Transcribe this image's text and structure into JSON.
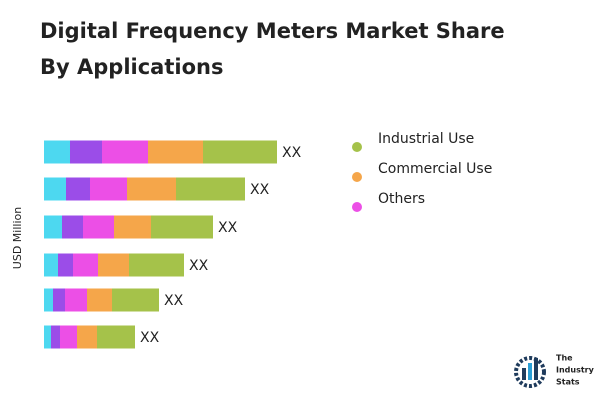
{
  "chart_data": {
    "type": "stacked-barh",
    "title_lines": [
      "Digital Frequency Meters Market Share",
      "By Applications"
    ],
    "y_label": "USD Million",
    "categories": [
      null,
      null,
      null,
      null,
      null,
      null
    ],
    "series": [
      {
        "color": "#4dd8f0",
        "values": [
          26,
          22,
          18,
          14,
          9,
          7
        ]
      },
      {
        "color": "#9b4de8",
        "values": [
          32,
          24,
          21,
          15,
          12,
          9
        ]
      },
      {
        "name": "Others",
        "color": "#ec4fe6",
        "values": [
          46,
          37,
          31,
          25,
          22,
          17
        ]
      },
      {
        "name": "Commercial Use",
        "color": "#f5a64a",
        "values": [
          55,
          49,
          37,
          31,
          25,
          20
        ]
      },
      {
        "name": "Industrial Use",
        "color": "#a5c24a",
        "values": [
          74,
          69,
          62,
          55,
          47,
          38
        ]
      }
    ],
    "value_labels": [
      "XX",
      "XX",
      "XX",
      "XX",
      "XX",
      "XX"
    ],
    "brand_lines": [
      "The",
      "Industry",
      "Stats"
    ]
  }
}
